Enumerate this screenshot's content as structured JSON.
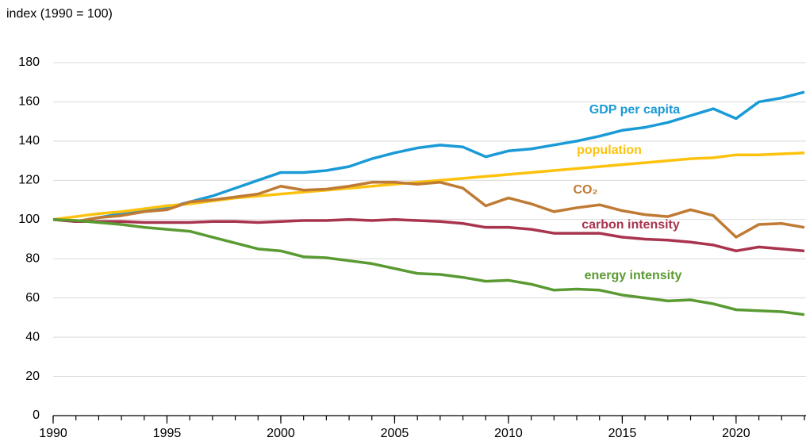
{
  "chart_data": {
    "type": "line",
    "ylabel": "index (1990 = 100)",
    "x": [
      1990,
      1991,
      1992,
      1993,
      1994,
      1995,
      1996,
      1997,
      1998,
      1999,
      2000,
      2001,
      2002,
      2003,
      2004,
      2005,
      2006,
      2007,
      2008,
      2009,
      2010,
      2011,
      2012,
      2013,
      2014,
      2015,
      2016,
      2017,
      2018,
      2019,
      2020,
      2021,
      2022,
      2023
    ],
    "xlim": [
      1990,
      2023
    ],
    "xticks": [
      1990,
      1995,
      2000,
      2005,
      2010,
      2015,
      2020
    ],
    "ylim": [
      0,
      180
    ],
    "yticks": [
      0,
      20,
      40,
      60,
      80,
      100,
      120,
      140,
      160,
      180
    ],
    "grid": true,
    "series": [
      {
        "name": "GDP per capita",
        "color": "#1a9ad6",
        "values": [
          100,
          99,
          101,
          103,
          105,
          106,
          109,
          112,
          116,
          120,
          124,
          124,
          125,
          127,
          131,
          134,
          136.5,
          138,
          137,
          132,
          135,
          136,
          138,
          140,
          142.5,
          145.5,
          147,
          149.5,
          153,
          156.5,
          151.5,
          160,
          162,
          165
        ]
      },
      {
        "name": "population",
        "color": "#fcc20e",
        "values": [
          100,
          101.5,
          103,
          104,
          105.5,
          107,
          108,
          109.5,
          111,
          112,
          113,
          114,
          115,
          116,
          117,
          118,
          119,
          120,
          121,
          122,
          123,
          124,
          125,
          126,
          127,
          128,
          129,
          130,
          131,
          131.5,
          133,
          133,
          133.5,
          134
        ]
      },
      {
        "name": "CO₂",
        "color": "#bf7a34",
        "values": [
          100,
          99,
          101,
          102,
          104,
          105,
          109,
          110,
          111.5,
          113,
          117,
          115,
          115.5,
          117,
          119,
          119,
          118,
          119,
          116,
          107,
          111,
          108,
          104,
          106,
          107.5,
          104.5,
          102.5,
          101.5,
          105,
          102,
          91,
          97.5,
          98,
          96
        ]
      },
      {
        "name": "carbon intensity",
        "color": "#a8344e",
        "values": [
          100,
          99,
          99,
          99,
          98.5,
          98.5,
          98.5,
          99,
          99,
          98.5,
          99,
          99.5,
          99.5,
          100,
          99.5,
          100,
          99.5,
          99,
          98,
          96,
          96,
          95,
          93,
          93,
          93,
          91,
          90,
          89.5,
          88.5,
          87,
          84,
          86,
          85,
          84
        ]
      },
      {
        "name": "energy intensity",
        "color": "#5a9a32",
        "values": [
          100,
          99.5,
          98.5,
          97.5,
          96,
          95,
          94,
          91,
          88,
          85,
          84,
          81,
          80.5,
          79,
          77.5,
          75,
          72.5,
          72,
          70.5,
          68.5,
          69,
          67,
          64,
          64.5,
          64,
          61.5,
          60,
          58.5,
          59,
          57,
          54,
          53.5,
          53,
          51.5
        ]
      }
    ]
  }
}
